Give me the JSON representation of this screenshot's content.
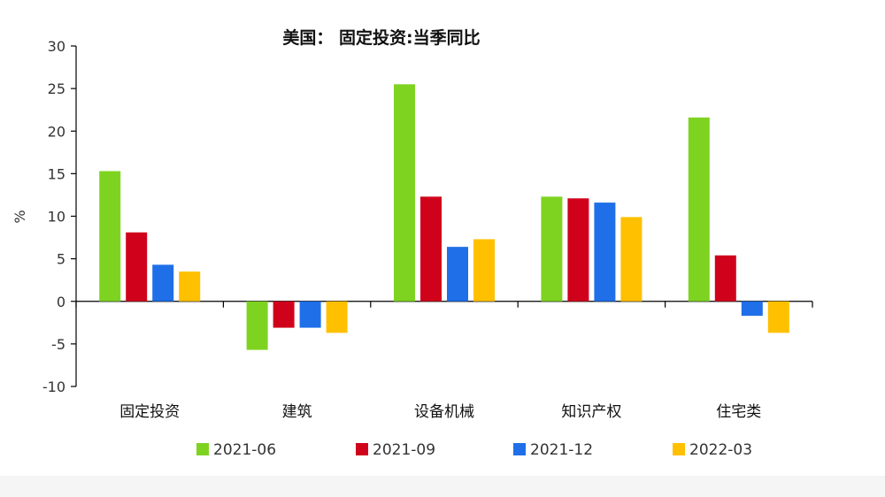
{
  "chart_data": {
    "type": "bar",
    "title": "美国： 固定投资:当季同比",
    "ylabel": "%",
    "xlabel": "",
    "ylim": [
      -10,
      30
    ],
    "yticks": [
      30,
      25,
      20,
      15,
      10,
      5,
      0,
      -5,
      -10
    ],
    "grid": false,
    "legend_position": "bottom",
    "categories": [
      "固定投资",
      "建筑",
      "设备机械",
      "知识产权",
      "住宅类"
    ],
    "series": [
      {
        "name": "2021-06",
        "color": "#7ed321",
        "values": [
          15.3,
          -5.7,
          25.5,
          12.3,
          21.6
        ]
      },
      {
        "name": "2021-09",
        "color": "#d0021b",
        "values": [
          8.1,
          -3.1,
          12.3,
          12.1,
          5.4
        ]
      },
      {
        "name": "2021-12",
        "color": "#1f6fe8",
        "values": [
          4.3,
          -3.1,
          6.4,
          11.6,
          -1.7
        ]
      },
      {
        "name": "2022-03",
        "color": "#ffc000",
        "values": [
          3.5,
          -3.7,
          7.3,
          9.9,
          -3.7
        ]
      }
    ]
  }
}
